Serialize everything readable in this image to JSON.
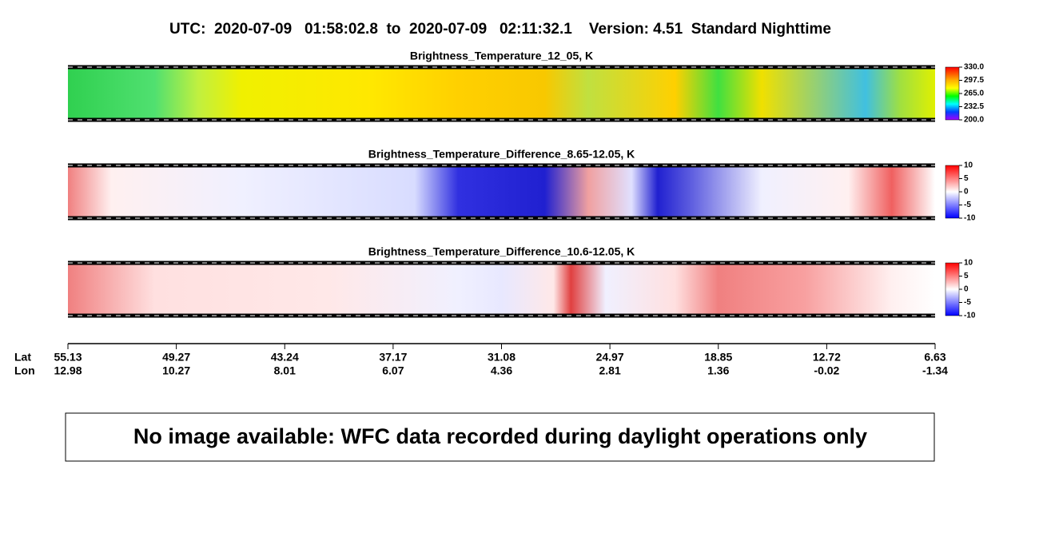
{
  "header": {
    "title": "UTC:  2020-07-09   01:58:02.8  to  2020-07-09   02:11:32.1    Version: 4.51  Standard Nighttime"
  },
  "panels": [
    {
      "title": "Brightness_Temperature_12_05, K",
      "colorbar_labels": [
        "330.0",
        "297.5",
        "265.0",
        "232.5",
        "200.0"
      ]
    },
    {
      "title": "Brightness_Temperature_Difference_8.65-12.05, K",
      "colorbar_labels": [
        "10",
        "5",
        "0",
        "-5",
        "-10"
      ]
    },
    {
      "title": "Brightness_Temperature_Difference_10.6-12.05, K",
      "colorbar_labels": [
        "10",
        "5",
        "0",
        "-5",
        "-10"
      ]
    }
  ],
  "axis": {
    "lat_label": "Lat",
    "lon_label": "Lon",
    "lat": [
      "55.13",
      "49.27",
      "43.24",
      "37.17",
      "31.08",
      "24.97",
      "18.85",
      "12.72",
      "6.63"
    ],
    "lon": [
      "12.98",
      "10.27",
      "8.01",
      "6.07",
      "4.36",
      "2.81",
      "1.36",
      "-0.02",
      "-1.34"
    ]
  },
  "message": "No image available: WFC data recorded during daylight operations only"
}
